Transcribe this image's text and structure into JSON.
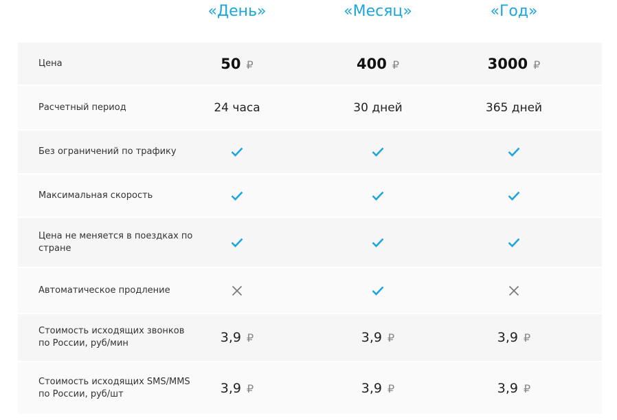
{
  "plans": [
    "«День»",
    "«Месяц»",
    "«Год»"
  ],
  "accent_color": "#1ca6dd",
  "currency": "₽",
  "rows": [
    {
      "label": "Цена",
      "type": "price",
      "values": [
        "50",
        "400",
        "3000"
      ]
    },
    {
      "label": "Расчетный период",
      "type": "text",
      "values": [
        "24 часа",
        "30 дней",
        "365 дней"
      ]
    },
    {
      "label": "Без ограничений по трафику",
      "type": "bool",
      "values": [
        true,
        true,
        true
      ]
    },
    {
      "label": "Максимальная скорость",
      "type": "bool",
      "values": [
        true,
        true,
        true
      ]
    },
    {
      "label": "Цена не меняется в поездках по стране",
      "type": "bool",
      "values": [
        true,
        true,
        true
      ]
    },
    {
      "label": "Автоматическое продление",
      "type": "bool",
      "values": [
        false,
        true,
        false
      ]
    },
    {
      "label": "Стоимость исходящих звонков по России, руб/мин",
      "type": "money",
      "values": [
        "3,9",
        "3,9",
        "3,9"
      ]
    },
    {
      "label": "Стоимость исходящих SMS/MMS по России, руб/шт",
      "type": "money",
      "values": [
        "3,9",
        "3,9",
        "3,9"
      ]
    }
  ]
}
